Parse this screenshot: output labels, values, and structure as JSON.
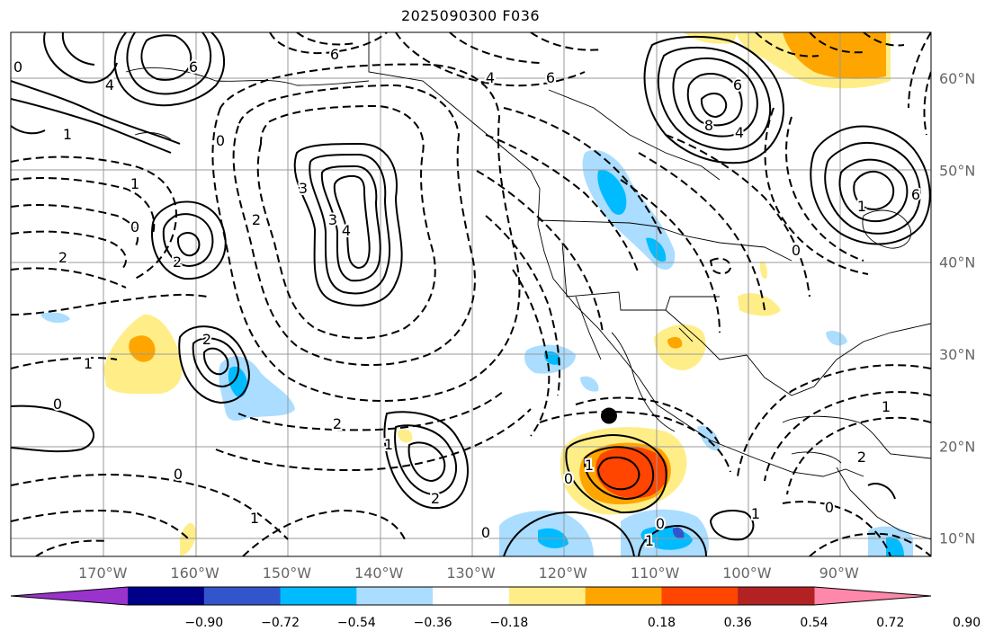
{
  "title": "2025090300 F036",
  "map": {
    "lon_labels": [
      "170°W",
      "160°W",
      "150°W",
      "140°W",
      "130°W",
      "120°W",
      "110°W",
      "100°W",
      "90°W"
    ],
    "lat_labels": [
      "60°N",
      "50°N",
      "40°N",
      "30°N",
      "20°N",
      "10°N"
    ],
    "marker": {
      "name": "black-dot-marker",
      "lon": -115.0,
      "lat": 23.3
    },
    "contour_labels": [
      "0",
      "6",
      "6",
      "4",
      "1",
      "0",
      "3",
      "2",
      "1",
      "2",
      "2",
      "4",
      "3",
      "0",
      "2",
      "1",
      "0",
      "2",
      "1",
      "0",
      "1",
      "0",
      "0",
      "1",
      "2",
      "0",
      "1",
      "1",
      "2",
      "4",
      "6",
      "6",
      "4",
      "8",
      "6",
      "1",
      "0",
      "1",
      "0"
    ]
  },
  "colorbar": {
    "colors": [
      "#9933cc",
      "#000088",
      "#3355cc",
      "#00bbff",
      "#aaddff",
      "#ffffff",
      "#ffee88",
      "#ffa500",
      "#ff4500",
      "#b22222",
      "#ff88aa"
    ],
    "tick_labels": [
      "−0.90",
      "−0.72",
      "−0.54",
      "−0.36",
      "−0.18",
      "0.18",
      "0.36",
      "0.54",
      "0.72",
      "0.90"
    ]
  }
}
